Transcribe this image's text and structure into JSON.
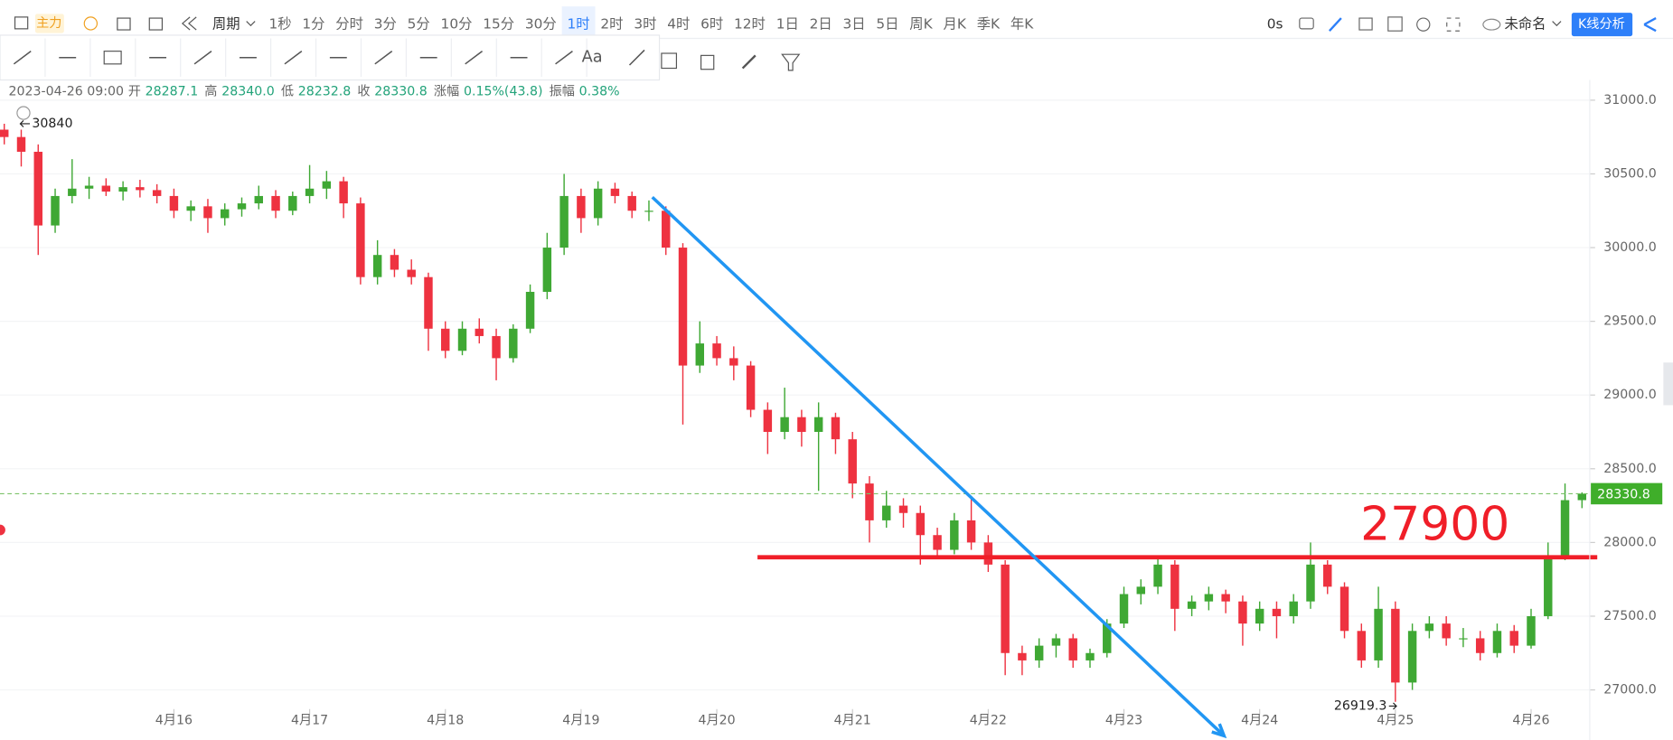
{
  "toolbar": {
    "indicator": "主力",
    "period": "周期",
    "intervals": [
      "1秒",
      "1分",
      "分时",
      "3分",
      "5分",
      "10分",
      "15分",
      "30分",
      "1时",
      "2时",
      "3时",
      "4时",
      "6时",
      "12时",
      "1日",
      "2日",
      "3日",
      "5日",
      "周K",
      "月K",
      "季K",
      "年K"
    ],
    "selected_interval": 8,
    "timer": "0s",
    "workspace": "未命名",
    "analysis_button": "K线分析",
    "text_tool": "Aa"
  },
  "info": {
    "time": "2023-04-26 09:00",
    "fields": [
      {
        "label": "开",
        "value": "28287.1"
      },
      {
        "label": "高",
        "value": "28340.0"
      },
      {
        "label": "低",
        "value": "28232.8"
      },
      {
        "label": "收",
        "value": "28330.8"
      },
      {
        "label": "涨幅",
        "value": "0.15%(43.8)"
      },
      {
        "label": "振幅",
        "value": "0.38%"
      }
    ]
  },
  "chart_data": {
    "type": "candlestick",
    "up_color": "#3fa834",
    "down_color": "#ee3240",
    "categories": [
      null,
      null,
      null,
      null,
      null,
      null,
      null,
      null,
      null,
      null,
      "4月16",
      null,
      null,
      null,
      null,
      null,
      null,
      null,
      "4月17",
      null,
      null,
      null,
      null,
      null,
      null,
      null,
      "4月18",
      null,
      null,
      null,
      null,
      null,
      null,
      null,
      "4月19",
      null,
      null,
      null,
      null,
      null,
      null,
      null,
      "4月20",
      null,
      null,
      null,
      null,
      null,
      null,
      null,
      "4月21",
      null,
      null,
      null,
      null,
      null,
      null,
      null,
      "4月22",
      null,
      null,
      null,
      null,
      null,
      null,
      null,
      "4月23",
      null,
      null,
      null,
      null,
      null,
      null,
      null,
      "4月24",
      null,
      null,
      null,
      null,
      null,
      null,
      null,
      "4月25",
      null,
      null,
      null,
      null,
      null,
      null,
      null,
      "4月26",
      null,
      null,
      null
    ],
    "open": [
      30800,
      30750,
      30650,
      30150,
      30350,
      30400,
      30420,
      30380,
      30410,
      30390,
      30350,
      30250,
      30280,
      30200,
      30260,
      30300,
      30350,
      30250,
      30350,
      30400,
      30450,
      30300,
      29800,
      29950,
      29850,
      29800,
      29450,
      29300,
      29450,
      29400,
      29250,
      29450,
      29700,
      30000,
      30350,
      30200,
      30400,
      30350,
      30250,
      30250,
      30000,
      29200,
      29350,
      29250,
      29200,
      28900,
      28750,
      28850,
      28750,
      28850,
      28700,
      28400,
      28150,
      28250,
      28200,
      28050,
      27950,
      28150,
      28000,
      27850,
      27250,
      27200,
      27300,
      27350,
      27200,
      27250,
      27450,
      27650,
      27700,
      27850,
      27550,
      27600,
      27650,
      27600,
      27450,
      27550,
      27500,
      27600,
      27850,
      27700,
      27400,
      27200,
      27550,
      27050,
      27400,
      27450,
      27350,
      27350,
      27250,
      27400,
      27300,
      27500,
      27900,
      28287.1
    ],
    "high": [
      30840,
      30800,
      30700,
      30400,
      30600,
      30480,
      30470,
      30450,
      30460,
      30430,
      30400,
      30320,
      30330,
      30300,
      30340,
      30420,
      30390,
      30380,
      30560,
      30520,
      30480,
      30340,
      30050,
      29990,
      29920,
      29830,
      29500,
      29500,
      29520,
      29450,
      29480,
      29750,
      30100,
      30500,
      30400,
      30450,
      30440,
      30380,
      30320,
      30280,
      30030,
      29500,
      29400,
      29330,
      29230,
      28950,
      29050,
      28900,
      28950,
      28880,
      28750,
      28450,
      28350,
      28300,
      28250,
      28100,
      28200,
      28300,
      28050,
      27880,
      27300,
      27350,
      27380,
      27380,
      27280,
      27480,
      27700,
      27750,
      27900,
      27880,
      27640,
      27700,
      27680,
      27640,
      27600,
      27600,
      27650,
      28000,
      27880,
      27730,
      27450,
      27700,
      27600,
      27450,
      27500,
      27500,
      27420,
      27400,
      27450,
      27440,
      27550,
      28000,
      28400,
      28340
    ],
    "low": [
      30700,
      30550,
      29950,
      30100,
      30300,
      30330,
      30350,
      30320,
      30340,
      30300,
      30200,
      30180,
      30100,
      30150,
      30210,
      30260,
      30200,
      30220,
      30300,
      30330,
      30200,
      29750,
      29750,
      29800,
      29750,
      29300,
      29250,
      29270,
      29350,
      29100,
      29220,
      29420,
      29650,
      29950,
      30100,
      30150,
      30300,
      30200,
      30180,
      29950,
      28800,
      29150,
      29200,
      29100,
      28850,
      28600,
      28700,
      28650,
      28350,
      28600,
      28300,
      28000,
      28100,
      28100,
      27850,
      27900,
      27920,
      27950,
      27800,
      27100,
      27100,
      27150,
      27220,
      27150,
      27150,
      27220,
      27420,
      27580,
      27650,
      27400,
      27500,
      27540,
      27520,
      27300,
      27400,
      27350,
      27450,
      27550,
      27650,
      27350,
      27150,
      27150,
      26919.3,
      27000,
      27350,
      27300,
      27290,
      27200,
      27220,
      27250,
      27280,
      27480,
      27880,
      28232.8
    ],
    "close": [
      30750,
      30650,
      30150,
      30350,
      30400,
      30420,
      30380,
      30410,
      30390,
      30350,
      30250,
      30280,
      30200,
      30260,
      30300,
      30350,
      30250,
      30350,
      30400,
      30450,
      30300,
      29800,
      29950,
      29850,
      29800,
      29450,
      29300,
      29450,
      29400,
      29250,
      29450,
      29700,
      30000,
      30350,
      30200,
      30400,
      30350,
      30250,
      30250,
      30000,
      29200,
      29350,
      29250,
      29200,
      28900,
      28750,
      28850,
      28750,
      28850,
      28700,
      28400,
      28150,
      28250,
      28200,
      28050,
      27950,
      28150,
      28000,
      27850,
      27250,
      27200,
      27300,
      27350,
      27200,
      27250,
      27450,
      27650,
      27700,
      27850,
      27550,
      27600,
      27650,
      27600,
      27450,
      27550,
      27500,
      27600,
      27850,
      27700,
      27400,
      27200,
      27550,
      27050,
      27400,
      27450,
      27350,
      27350,
      27250,
      27400,
      27300,
      27500,
      27900,
      28287.1,
      28330.8
    ],
    "ylim": [
      26870,
      31137
    ],
    "yticks": [
      {
        "value": 27000,
        "label": "27000.0"
      },
      {
        "value": 27500,
        "label": "27500.0"
      },
      {
        "value": 28000,
        "label": "28000.0"
      },
      {
        "value": 28500,
        "label": "28500.0"
      },
      {
        "value": 29000,
        "label": "29000.0"
      },
      {
        "value": 29500,
        "label": "29500.0"
      },
      {
        "value": 30000,
        "label": "30000.0"
      },
      {
        "value": 30500,
        "label": "30500.0"
      },
      {
        "value": 31000,
        "label": "31000.0"
      }
    ],
    "level": 27900,
    "level_x": [
      44.4,
      93.9
    ],
    "trendline": {
      "x": [
        38.2,
        71.9
      ],
      "y": [
        30342,
        26689
      ]
    }
  }
}
